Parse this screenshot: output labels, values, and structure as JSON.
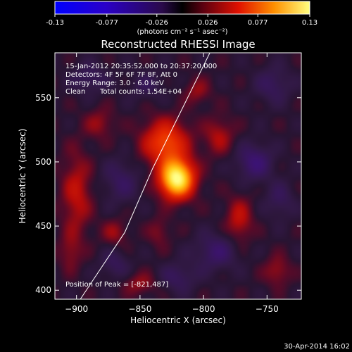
{
  "chart_data": {
    "type": "heatmap",
    "title": "Reconstructed RHESSI Image",
    "xlabel": "Heliocentric X (arcsec)",
    "ylabel": "Heliocentric Y (arcsec)",
    "xlim": [
      -917,
      -723
    ],
    "ylim": [
      393,
      585
    ],
    "x_ticks": [
      -900,
      -850,
      -800,
      -750
    ],
    "y_ticks": [
      400,
      450,
      500,
      550
    ],
    "colorbar": {
      "range": [
        -0.13,
        0.13
      ],
      "ticks": [
        -0.13,
        -0.077,
        -0.026,
        0.026,
        0.077,
        0.13
      ],
      "tick_labels": [
        "-0.13",
        "-0.077",
        "-0.026",
        "0.026",
        "0.077",
        "0.13"
      ],
      "units": "(photons cm⁻² s⁻¹ asec⁻²)"
    },
    "annotations": {
      "time_range": "15-Jan-2012 20:35:52.000 to 20:37:20.000",
      "detectors": "Detectors: 4F 5F 6F 7F 8F, Att 0",
      "energy": "Energy Range: 3.0 - 6.0 keV",
      "method": "Clean",
      "counts": "Total counts: 1.54E+04",
      "peak": "Position of Peak = [-821,487]"
    },
    "peak": {
      "x": -821,
      "y": 487
    },
    "limb_line": [
      [
        -897,
        393
      ],
      [
        -862,
        445
      ],
      [
        -840,
        495
      ],
      [
        -820,
        535
      ],
      [
        -795,
        585
      ]
    ],
    "sources": [
      {
        "x": -821,
        "y": 487,
        "amp": 0.13,
        "sx": 9,
        "sy": 10
      },
      {
        "x": -830,
        "y": 515,
        "amp": 0.06,
        "sx": 12,
        "sy": 12
      },
      {
        "x": -788,
        "y": 520,
        "amp": 0.025,
        "sx": 8,
        "sy": 10
      },
      {
        "x": -805,
        "y": 555,
        "amp": 0.02,
        "sx": 7,
        "sy": 7
      },
      {
        "x": -900,
        "y": 475,
        "amp": 0.03,
        "sx": 8,
        "sy": 22
      },
      {
        "x": -882,
        "y": 530,
        "amp": 0.02,
        "sx": 8,
        "sy": 8
      },
      {
        "x": -905,
        "y": 430,
        "amp": 0.018,
        "sx": 6,
        "sy": 10
      },
      {
        "x": -870,
        "y": 445,
        "amp": 0.02,
        "sx": 7,
        "sy": 7
      },
      {
        "x": -772,
        "y": 455,
        "amp": 0.03,
        "sx": 7,
        "sy": 12
      },
      {
        "x": -742,
        "y": 415,
        "amp": 0.022,
        "sx": 7,
        "sy": 8
      },
      {
        "x": -850,
        "y": 405,
        "amp": 0.02,
        "sx": 9,
        "sy": 6
      },
      {
        "x": -835,
        "y": 445,
        "amp": 0.016,
        "sx": 6,
        "sy": 8
      },
      {
        "x": -760,
        "y": 500,
        "amp": -0.03,
        "sx": 10,
        "sy": 10
      },
      {
        "x": -865,
        "y": 485,
        "amp": -0.02,
        "sx": 10,
        "sy": 12
      },
      {
        "x": -790,
        "y": 430,
        "amp": -0.025,
        "sx": 12,
        "sy": 10
      },
      {
        "x": -890,
        "y": 565,
        "amp": -0.02,
        "sx": 10,
        "sy": 8
      },
      {
        "x": -745,
        "y": 560,
        "amp": -0.02,
        "sx": 10,
        "sy": 10
      },
      {
        "x": -870,
        "y": 420,
        "amp": -0.018,
        "sx": 8,
        "sy": 8
      },
      {
        "x": -820,
        "y": 410,
        "amp": -0.02,
        "sx": 10,
        "sy": 8
      },
      {
        "x": -845,
        "y": 560,
        "amp": -0.015,
        "sx": 10,
        "sy": 8
      },
      {
        "x": -740,
        "y": 470,
        "amp": -0.018,
        "sx": 8,
        "sy": 10
      }
    ]
  },
  "footer": {
    "date": "30-Apr-2014 16:02"
  }
}
